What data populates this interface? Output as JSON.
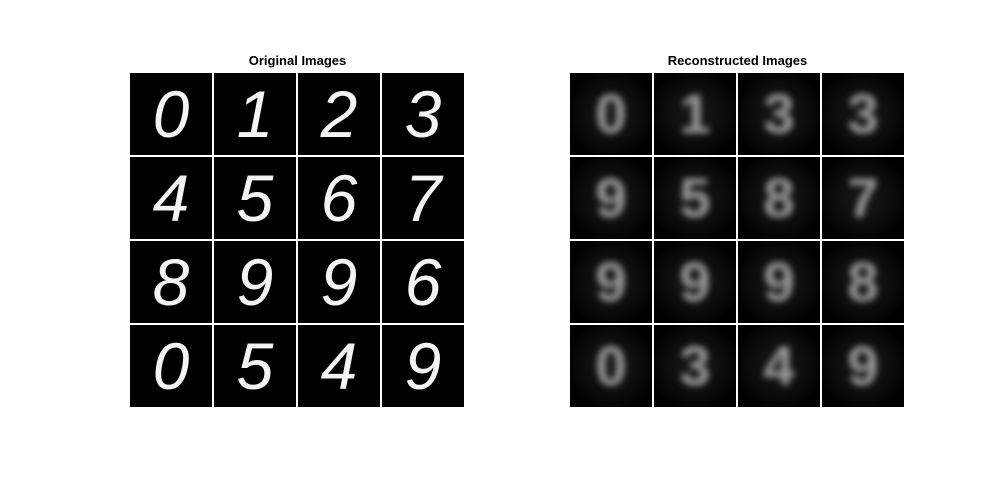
{
  "original": {
    "title": "Original Images",
    "digits": [
      "0",
      "1",
      "2",
      "3",
      "4",
      "5",
      "6",
      "7",
      "8",
      "9",
      "9",
      "6",
      "0",
      "5",
      "4",
      "9"
    ]
  },
  "reconstructed": {
    "title": "Reconstructed Images",
    "digits": [
      "0",
      "1",
      "3",
      "3",
      "9",
      "5",
      "8",
      "7",
      "9",
      "9",
      "9",
      "8",
      "0",
      "3",
      "4",
      "9"
    ]
  },
  "colors": {
    "background": "#ffffff",
    "tile": "#000000",
    "stroke_original": "#f4f4f4",
    "stroke_reconstructed": "#bdbdbd"
  }
}
